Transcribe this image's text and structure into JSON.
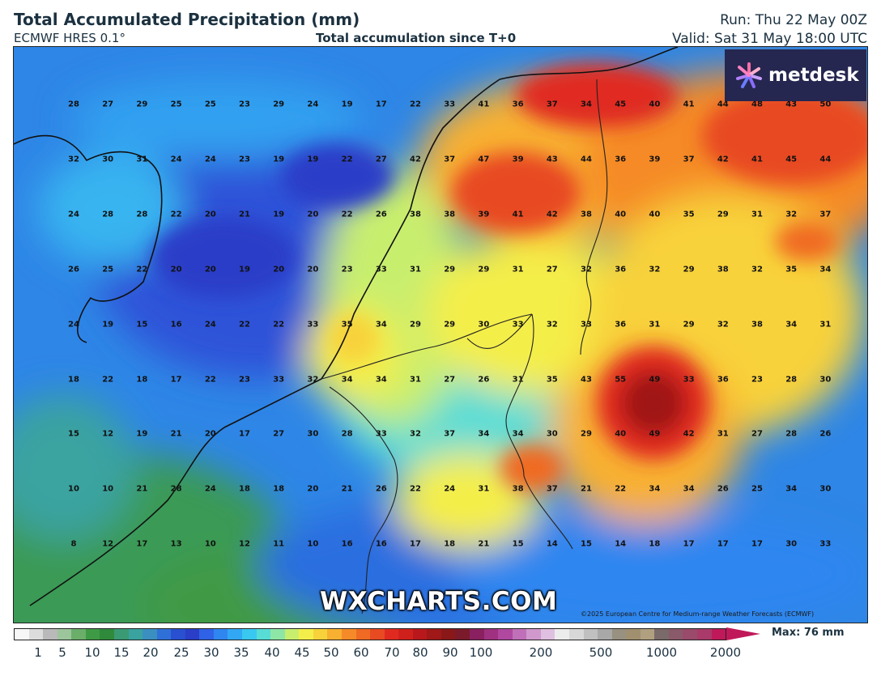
{
  "header": {
    "title": "Total Accumulated Precipitation (mm)",
    "model": "ECMWF HRES 0.1°",
    "subtitle": "Total accumulation since T+0",
    "run": "Run: Thu 22 May 00Z",
    "valid": "Valid: Sat 31 May 18:00 UTC"
  },
  "logo": {
    "text": "metdesk",
    "icon": "metdesk-flower-icon"
  },
  "watermark": "WXCHARTS.COM",
  "copyright": "©2025 European Centre for Medium-range Weather Forecasts (ECMWF)",
  "legend": {
    "max_label": "Max: 76 mm",
    "ticks": [
      "1",
      "5",
      "10",
      "15",
      "20",
      "25",
      "30",
      "35",
      "40",
      "45",
      "50",
      "60",
      "70",
      "80",
      "90",
      "100",
      "200",
      "500",
      "1000",
      "2000"
    ],
    "colors": [
      "#f7f7f7",
      "#dcdcdc",
      "#b9b9b9",
      "#9cc59c",
      "#6aae6a",
      "#3f9a45",
      "#2f8a3c",
      "#3a9a74",
      "#3aa3a0",
      "#3a8fc0",
      "#2f6fd8",
      "#2850d0",
      "#2a3ec8",
      "#2f62e6",
      "#2f86f0",
      "#32a8f5",
      "#38c8f0",
      "#58dcd6",
      "#8ee6a6",
      "#c8ee6e",
      "#f4ee4a",
      "#f8d23a",
      "#f8b030",
      "#f58a28",
      "#f06a24",
      "#e84a22",
      "#e02a20",
      "#d0201c",
      "#b8181c",
      "#a01818",
      "#8a1818",
      "#7a1a2a",
      "#8a2060",
      "#a03080",
      "#b048a0",
      "#c070b8",
      "#d098cc",
      "#e0c0e0",
      "#ececec",
      "#d8d8d8",
      "#c0c0c0",
      "#a8a8a8",
      "#989080",
      "#a09070",
      "#b0a080",
      "#7a6a6a",
      "#8a5a6a",
      "#9a4a6a",
      "#aa3a6a",
      "#c0195a"
    ]
  },
  "grid_values": [
    [
      28,
      27,
      29,
      25,
      25,
      23,
      29,
      24,
      19,
      17,
      22,
      33,
      41,
      36,
      37,
      34,
      45,
      40,
      41,
      44,
      48,
      43,
      50
    ],
    [
      32,
      30,
      31,
      24,
      24,
      23,
      19,
      19,
      22,
      27,
      42,
      37,
      47,
      39,
      43,
      44,
      36,
      39,
      37,
      42,
      41,
      45,
      44
    ],
    [
      24,
      28,
      28,
      22,
      20,
      21,
      19,
      20,
      22,
      26,
      38,
      38,
      39,
      41,
      42,
      38,
      40,
      40,
      35,
      29,
      31,
      32,
      37
    ],
    [
      26,
      25,
      22,
      20,
      20,
      19,
      20,
      20,
      23,
      33,
      31,
      29,
      29,
      31,
      27,
      32,
      36,
      32,
      29,
      38,
      32,
      35,
      34
    ],
    [
      24,
      19,
      15,
      16,
      24,
      22,
      22,
      33,
      35,
      34,
      29,
      29,
      30,
      33,
      32,
      33,
      36,
      31,
      29,
      32,
      38,
      34,
      31
    ],
    [
      18,
      22,
      18,
      17,
      22,
      23,
      33,
      32,
      34,
      34,
      31,
      27,
      26,
      31,
      35,
      43,
      55,
      49,
      33,
      36,
      23,
      28,
      30
    ],
    [
      15,
      12,
      19,
      21,
      20,
      17,
      27,
      30,
      28,
      33,
      32,
      37,
      34,
      34,
      30,
      29,
      40,
      49,
      42,
      31,
      27,
      28,
      26
    ],
    [
      10,
      10,
      21,
      28,
      24,
      18,
      18,
      20,
      21,
      26,
      22,
      24,
      31,
      38,
      37,
      21,
      22,
      34,
      34,
      26,
      25,
      34,
      30
    ],
    [
      8,
      12,
      17,
      13,
      10,
      12,
      11,
      10,
      16,
      16,
      17,
      18,
      21,
      15,
      14,
      15,
      14,
      18,
      17,
      17,
      17,
      30,
      33
    ]
  ]
}
